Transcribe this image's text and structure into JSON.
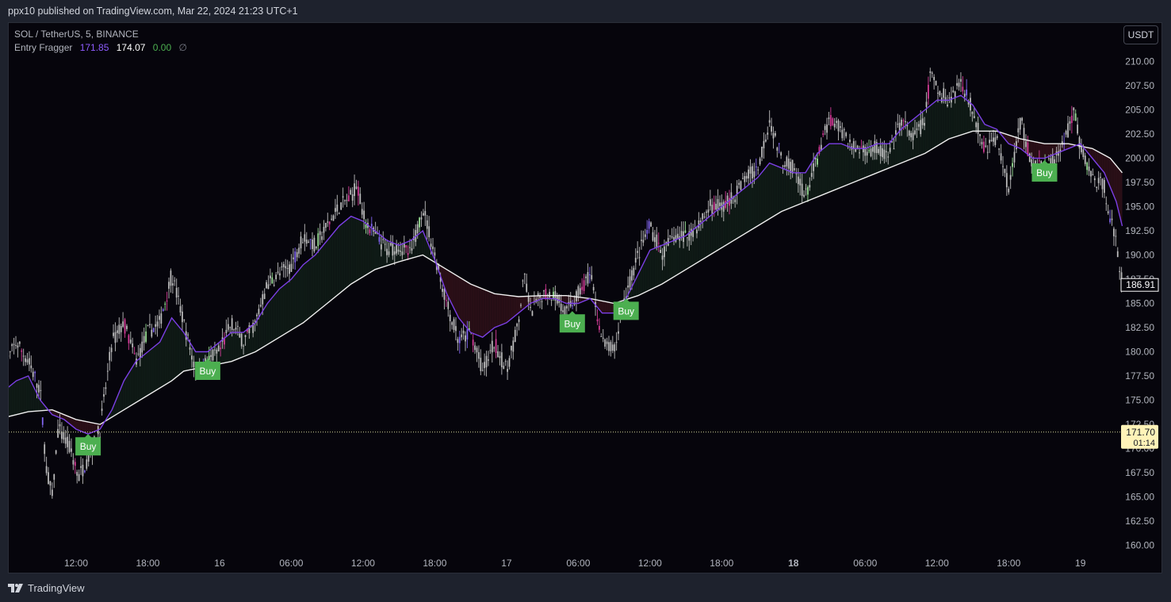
{
  "header": {
    "publish_note": "ppx10 published on TradingView.com, Mar 22, 2024 21:23 UTC+1"
  },
  "legend": {
    "symbol": "SOL / TetherUS, 5, BINANCE",
    "indicator_name": "Entry Fragger",
    "values": [
      "171.85",
      "174.07",
      "0.00",
      "∅"
    ]
  },
  "currency_button": "USDT",
  "footer": {
    "brand": "TradingView"
  },
  "colors": {
    "background": "#06050c",
    "fast_line": "#7b3fe4",
    "slow_line": "#f0f0f0",
    "bull_fill": "#0f1a16",
    "bear_fill": "#2a0f17",
    "buy_signal": "#4caf50",
    "candle": "#c8c8c8"
  },
  "chart_data": {
    "type": "line",
    "symbol": "SOL / TetherUS",
    "interval": "5",
    "exchange": "BINANCE",
    "ylim": [
      158.5,
      212
    ],
    "y_ticks": [
      "210.00",
      "207.50",
      "205.00",
      "202.50",
      "200.00",
      "197.50",
      "195.00",
      "192.50",
      "190.00",
      "187.50",
      "185.00",
      "182.50",
      "180.00",
      "177.50",
      "175.00",
      "172.50",
      "170.00",
      "167.50",
      "165.00",
      "162.50",
      "160.00"
    ],
    "x_ticks": [
      {
        "label": "12:00",
        "t": 9.0
      },
      {
        "label": "18:00",
        "t": 15.0
      },
      {
        "label": "16",
        "t": 21.0
      },
      {
        "label": "06:00",
        "t": 27.0
      },
      {
        "label": "12:00",
        "t": 33.0
      },
      {
        "label": "18:00",
        "t": 39.0
      },
      {
        "label": "17",
        "t": 45.0
      },
      {
        "label": "06:00",
        "t": 51.0
      },
      {
        "label": "12:00",
        "t": 57.0
      },
      {
        "label": "18:00",
        "t": 63.0
      },
      {
        "label": "18",
        "t": 69.0
      },
      {
        "label": "06:00",
        "t": 75.0
      },
      {
        "label": "12:00",
        "t": 81.0
      },
      {
        "label": "18:00",
        "t": 87.0
      },
      {
        "label": "19",
        "t": 93.0
      }
    ],
    "time_range": [
      3.0,
      96.5
    ],
    "price_path": [
      [
        3.0,
        178.5
      ],
      [
        4.0,
        181
      ],
      [
        5.0,
        179
      ],
      [
        6.0,
        176
      ],
      [
        6.5,
        168
      ],
      [
        7.0,
        165
      ],
      [
        7.5,
        172
      ],
      [
        8.5,
        170
      ],
      [
        9.2,
        167
      ],
      [
        10.0,
        169
      ],
      [
        11.0,
        172
      ],
      [
        12.0,
        181
      ],
      [
        13.0,
        183
      ],
      [
        14.0,
        179
      ],
      [
        15.0,
        182
      ],
      [
        16.0,
        183
      ],
      [
        17.0,
        188
      ],
      [
        18.0,
        183
      ],
      [
        19.0,
        178
      ],
      [
        20.0,
        179
      ],
      [
        21.0,
        180
      ],
      [
        22.0,
        183
      ],
      [
        23.0,
        181
      ],
      [
        24.0,
        183
      ],
      [
        25.0,
        187
      ],
      [
        26.0,
        188
      ],
      [
        27.0,
        189
      ],
      [
        28.0,
        192
      ],
      [
        29.0,
        191
      ],
      [
        30.0,
        193
      ],
      [
        31.0,
        195
      ],
      [
        32.0,
        196
      ],
      [
        32.5,
        197.5
      ],
      [
        33.0,
        194
      ],
      [
        34.0,
        192
      ],
      [
        35.0,
        190.5
      ],
      [
        36.0,
        191
      ],
      [
        37.0,
        190
      ],
      [
        38.0,
        195
      ],
      [
        39.0,
        190
      ],
      [
        40.0,
        185
      ],
      [
        41.0,
        181
      ],
      [
        42.0,
        182
      ],
      [
        43.0,
        178
      ],
      [
        44.0,
        181
      ],
      [
        45.0,
        178
      ],
      [
        46.0,
        183
      ],
      [
        46.5,
        188
      ],
      [
        47.0,
        184
      ],
      [
        48.0,
        186
      ],
      [
        49.0,
        186
      ],
      [
        50.0,
        184
      ],
      [
        51.0,
        186
      ],
      [
        52.0,
        188
      ],
      [
        53.0,
        181
      ],
      [
        54.0,
        180
      ],
      [
        55.0,
        186
      ],
      [
        56.0,
        190
      ],
      [
        57.0,
        193
      ],
      [
        58.0,
        190
      ],
      [
        59.0,
        192
      ],
      [
        60.0,
        192
      ],
      [
        61.0,
        193
      ],
      [
        62.0,
        195
      ],
      [
        63.0,
        195
      ],
      [
        64.0,
        196
      ],
      [
        65.0,
        198
      ],
      [
        66.0,
        199
      ],
      [
        67.0,
        204
      ],
      [
        68.0,
        200
      ],
      [
        69.0,
        199
      ],
      [
        70.0,
        196
      ],
      [
        71.0,
        200
      ],
      [
        72.0,
        204
      ],
      [
        73.0,
        203
      ],
      [
        74.0,
        201
      ],
      [
        75.0,
        201
      ],
      [
        76.0,
        201
      ],
      [
        77.0,
        200
      ],
      [
        78.0,
        204
      ],
      [
        79.0,
        202
      ],
      [
        80.0,
        204
      ],
      [
        80.5,
        209
      ],
      [
        81.0,
        207
      ],
      [
        82.0,
        206
      ],
      [
        83.0,
        208
      ],
      [
        84.0,
        205
      ],
      [
        85.0,
        201
      ],
      [
        86.0,
        202
      ],
      [
        87.0,
        197
      ],
      [
        88.0,
        204
      ],
      [
        89.0,
        199
      ],
      [
        90.0,
        199
      ],
      [
        91.0,
        200
      ],
      [
        92.0,
        203
      ],
      [
        92.5,
        205
      ],
      [
        93.0,
        201
      ],
      [
        94.0,
        198
      ],
      [
        95.0,
        197
      ],
      [
        96.0,
        191
      ],
      [
        96.5,
        187
      ]
    ],
    "series": [
      {
        "values": [
          [
            3.0,
            176
          ],
          [
            4.0,
            177
          ],
          [
            5.0,
            177.5
          ],
          [
            6.0,
            175
          ],
          [
            7.0,
            173.5
          ],
          [
            8.0,
            173
          ],
          [
            9.0,
            172
          ],
          [
            10.0,
            171.5
          ],
          [
            11.0,
            172
          ],
          [
            12.0,
            174
          ],
          [
            13.0,
            177
          ],
          [
            14.0,
            179
          ],
          [
            15.0,
            180
          ],
          [
            16.0,
            181
          ],
          [
            17.0,
            183.5
          ],
          [
            18.0,
            182
          ],
          [
            19.0,
            180
          ],
          [
            20.0,
            180
          ],
          [
            21.0,
            181
          ],
          [
            22.0,
            182
          ],
          [
            23.0,
            182
          ],
          [
            24.0,
            183
          ],
          [
            25.0,
            185
          ],
          [
            26.0,
            186.5
          ],
          [
            27.0,
            187.5
          ],
          [
            28.0,
            189
          ],
          [
            29.0,
            190
          ],
          [
            30.0,
            191.5
          ],
          [
            31.0,
            193
          ],
          [
            32.0,
            194
          ],
          [
            33.0,
            193.5
          ],
          [
            34.0,
            192.5
          ],
          [
            35.0,
            191.5
          ],
          [
            36.0,
            191
          ],
          [
            37.0,
            191.5
          ],
          [
            38.0,
            192.5
          ],
          [
            39.0,
            189.5
          ],
          [
            40.0,
            186
          ],
          [
            41.0,
            183.5
          ],
          [
            42.0,
            182
          ],
          [
            43.0,
            181.5
          ],
          [
            44.0,
            182.5
          ],
          [
            45.0,
            183
          ],
          [
            46.0,
            184
          ],
          [
            47.0,
            185
          ],
          [
            48.0,
            185.5
          ],
          [
            49.0,
            185.5
          ],
          [
            50.0,
            185
          ],
          [
            51.0,
            185
          ],
          [
            52.0,
            185.5
          ],
          [
            53.0,
            184
          ],
          [
            54.0,
            184
          ],
          [
            55.0,
            185.5
          ],
          [
            56.0,
            188
          ],
          [
            57.0,
            190.5
          ],
          [
            58.0,
            191
          ],
          [
            59.0,
            191.5
          ],
          [
            60.0,
            192
          ],
          [
            61.0,
            193
          ],
          [
            62.0,
            194
          ],
          [
            63.0,
            195
          ],
          [
            64.0,
            196
          ],
          [
            65.0,
            197
          ],
          [
            66.0,
            198
          ],
          [
            67.0,
            199.5
          ],
          [
            68.0,
            199
          ],
          [
            69.0,
            198.5
          ],
          [
            70.0,
            198.5
          ],
          [
            71.0,
            200.5
          ],
          [
            72.0,
            201.5
          ],
          [
            73.0,
            201.5
          ],
          [
            74.0,
            201
          ],
          [
            75.0,
            201
          ],
          [
            76.0,
            201.5
          ],
          [
            77.0,
            201.5
          ],
          [
            78.0,
            203
          ],
          [
            79.0,
            204
          ],
          [
            80.0,
            205
          ],
          [
            81.0,
            206
          ],
          [
            82.0,
            206
          ],
          [
            83.0,
            206.5
          ],
          [
            84.0,
            205.5
          ],
          [
            85.0,
            203.5
          ],
          [
            86.0,
            203
          ],
          [
            87.0,
            201.5
          ],
          [
            88.0,
            201
          ],
          [
            89.0,
            200
          ],
          [
            90.0,
            200
          ],
          [
            91.0,
            200.5
          ],
          [
            92.0,
            201
          ],
          [
            93.0,
            201.5
          ],
          [
            94.0,
            200
          ],
          [
            95.0,
            198.5
          ],
          [
            96.0,
            195.5
          ],
          [
            96.5,
            193
          ]
        ]
      },
      {
        "values": [
          [
            3.0,
            173.2
          ],
          [
            5.0,
            173.8
          ],
          [
            7.0,
            174
          ],
          [
            9.0,
            173
          ],
          [
            11.0,
            172.5
          ],
          [
            13.0,
            174
          ],
          [
            15.0,
            175.5
          ],
          [
            17.0,
            177
          ],
          [
            18.0,
            178
          ],
          [
            20.0,
            178.5
          ],
          [
            22.0,
            179
          ],
          [
            24.0,
            180
          ],
          [
            26.0,
            181.5
          ],
          [
            28.0,
            183
          ],
          [
            30.0,
            185
          ],
          [
            32.0,
            187
          ],
          [
            34.0,
            188.5
          ],
          [
            36.0,
            189.3
          ],
          [
            38.0,
            190
          ],
          [
            40.0,
            188.5
          ],
          [
            42.0,
            187
          ],
          [
            44.0,
            186
          ],
          [
            46.0,
            185.7
          ],
          [
            48.0,
            185.8
          ],
          [
            50.0,
            185.8
          ],
          [
            52.0,
            185.5
          ],
          [
            54.0,
            185
          ],
          [
            56.0,
            185.8
          ],
          [
            58.0,
            187
          ],
          [
            60.0,
            188.5
          ],
          [
            62.0,
            190
          ],
          [
            64.0,
            191.5
          ],
          [
            66.0,
            193
          ],
          [
            68.0,
            194.5
          ],
          [
            70.0,
            195.5
          ],
          [
            72.0,
            196.5
          ],
          [
            74.0,
            197.5
          ],
          [
            76.0,
            198.5
          ],
          [
            78.0,
            199.5
          ],
          [
            80.0,
            200.5
          ],
          [
            82.0,
            202
          ],
          [
            84.0,
            202.8
          ],
          [
            86.0,
            202.8
          ],
          [
            88.0,
            202
          ],
          [
            90.0,
            201.5
          ],
          [
            92.0,
            201.5
          ],
          [
            94.0,
            201
          ],
          [
            95.5,
            200
          ],
          [
            96.5,
            198.5
          ]
        ]
      }
    ],
    "buy_signals": [
      [
        10.0,
        171.5
      ],
      [
        20.0,
        179.3
      ],
      [
        50.5,
        184.2
      ],
      [
        55.0,
        185.5
      ],
      [
        90.0,
        199.8
      ]
    ],
    "buy_label": "Buy",
    "last_price_label": "186.91",
    "current_price": {
      "value": 171.7,
      "label": "171.70",
      "countdown": "01:14"
    }
  }
}
